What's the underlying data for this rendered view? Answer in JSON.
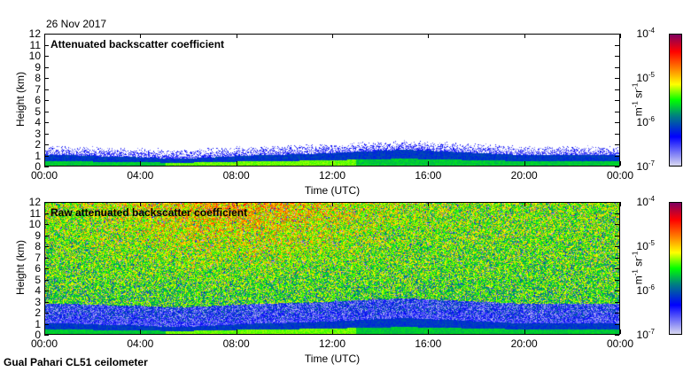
{
  "date": "26 Nov 2017",
  "footer": "Gual Pahari CL51 ceilometer",
  "colors": {
    "low": "#d8d8f0",
    "blue": "#0000ff",
    "teal": "#008080",
    "green": "#00ff00",
    "yellow": "#ffff00",
    "orange": "#ff8000",
    "red": "#ff0000",
    "high": "#800060"
  },
  "chart_data": [
    {
      "type": "heatmap",
      "title": "Attenuated backscatter coefficient",
      "xlabel": "Time (UTC)",
      "ylabel": "Height (km)",
      "xticks": [
        "00:00",
        "04:00",
        "08:00",
        "12:00",
        "16:00",
        "20:00",
        "00:00"
      ],
      "yticks": [
        "0",
        "1",
        "2",
        "3",
        "4",
        "5",
        "6",
        "7",
        "8",
        "9",
        "10",
        "11",
        "12"
      ],
      "ylim": [
        0,
        12
      ],
      "xlim_hours": [
        0,
        24
      ],
      "colorbar": {
        "label_base": "m",
        "label_exp1": "-1",
        "label_mid": " sr",
        "label_exp2": "-1",
        "scale": "log",
        "ticks": [
          {
            "base": "10",
            "exp": "-4"
          },
          {
            "base": "10",
            "exp": "-5"
          },
          {
            "base": "10",
            "exp": "-6"
          },
          {
            "base": "10",
            "exp": "-7"
          }
        ],
        "range": [
          1e-07,
          0.0001
        ]
      },
      "layer_top_km_by_hour": [
        1.0,
        1.0,
        0.9,
        0.85,
        0.8,
        0.7,
        0.7,
        0.8,
        0.9,
        1.0,
        1.05,
        1.1,
        1.2,
        1.3,
        1.4,
        1.5,
        1.4,
        1.3,
        1.2,
        1.1,
        1.0,
        1.0,
        1.0,
        1.0,
        1.0
      ]
    },
    {
      "type": "heatmap",
      "title": "Raw attenuated backscatter coefficient",
      "xlabel": "Time (UTC)",
      "ylabel": "Height (km)",
      "xticks": [
        "00:00",
        "04:00",
        "08:00",
        "12:00",
        "16:00",
        "20:00",
        "00:00"
      ],
      "yticks": [
        "0",
        "1",
        "2",
        "3",
        "4",
        "5",
        "6",
        "7",
        "8",
        "9",
        "10",
        "11",
        "12"
      ],
      "ylim": [
        0,
        12
      ],
      "xlim_hours": [
        0,
        24
      ],
      "colorbar": {
        "label_base": "m",
        "label_exp1": "-1",
        "label_mid": " sr",
        "label_exp2": "-1",
        "scale": "log",
        "ticks": [
          {
            "base": "10",
            "exp": "-4"
          },
          {
            "base": "10",
            "exp": "-5"
          },
          {
            "base": "10",
            "exp": "-6"
          },
          {
            "base": "10",
            "exp": "-7"
          }
        ],
        "range": [
          1e-07,
          0.0001
        ]
      }
    }
  ]
}
